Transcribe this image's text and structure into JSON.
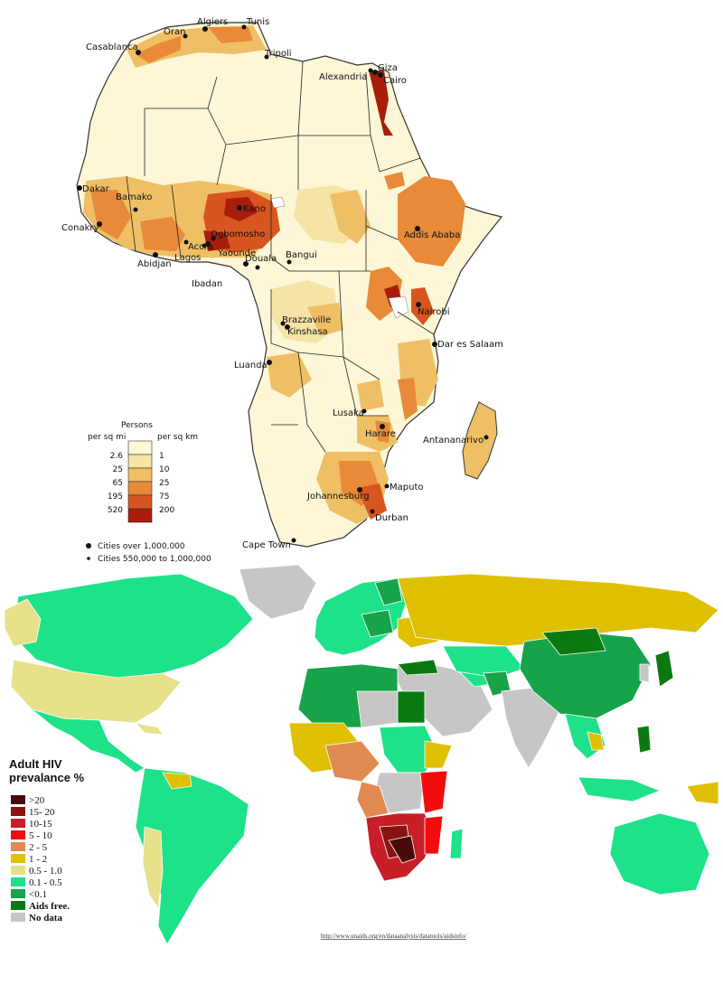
{
  "africa_map": {
    "legend": {
      "title": "Persons",
      "col_left": "per sq mi",
      "col_right": "per sq km",
      "rows": [
        {
          "mi": "2.6",
          "km": "1",
          "color": "#fdf7d7"
        },
        {
          "mi": "25",
          "km": "10",
          "color": "#f5e4a5"
        },
        {
          "mi": "65",
          "km": "25",
          "color": "#efbf66"
        },
        {
          "mi": "195",
          "km": "75",
          "color": "#e88a38"
        },
        {
          "mi": "520",
          "km": "200",
          "color": "#d8551f"
        },
        {
          "mi": "",
          "km": "",
          "color": "#a91d0b"
        }
      ],
      "cities_large": "Cities over 1,000,000",
      "cities_medium": "Cities 550,000 to 1,000,000"
    },
    "cities": [
      "Algiers",
      "Tunis",
      "Oran",
      "Casablanca",
      "Tripoli",
      "Giza",
      "Alexandria",
      "Cairo",
      "Dakar",
      "Bamako",
      "Kano",
      "Conakry",
      "Ogbomosho",
      "Addis Ababa",
      "Accra",
      "Douala",
      "Bangui",
      "Abidjan",
      "Lagos",
      "Yaounde",
      "Ibadan",
      "Nairobi",
      "Brazzaville",
      "Kinshasa",
      "Dar es Salaam",
      "Luanda",
      "Lusaka",
      "Harare",
      "Antananarivo",
      "Maputo",
      "Johannesburg",
      "Durban",
      "Cape Town"
    ]
  },
  "hiv_map": {
    "title_line1": "Adult HIV",
    "title_line2": "prevalance %",
    "legend": [
      {
        "label": ">20",
        "color": "#4a0a0a"
      },
      {
        "label": "15- 20",
        "color": "#8b1212"
      },
      {
        "label": "10-15",
        "color": "#c81e28"
      },
      {
        "label": "5 - 10",
        "color": "#f20d0d"
      },
      {
        "label": "2 - 5",
        "color": "#e08a52"
      },
      {
        "label": "1 - 2",
        "color": "#dfc000"
      },
      {
        "label": "0.5 - 1.0",
        "color": "#e6e08a"
      },
      {
        "label": "0.1 - 0.5",
        "color": "#1de28a"
      },
      {
        "label": "<0.1",
        "color": "#17a34a"
      },
      {
        "label": "Aids free.",
        "color": "#0a7a10"
      },
      {
        "label": "No data",
        "color": "#c6c6c6"
      }
    ],
    "source": "http://www.unaids.org/en/dataanalysis/datatools/aidsinfo/"
  }
}
